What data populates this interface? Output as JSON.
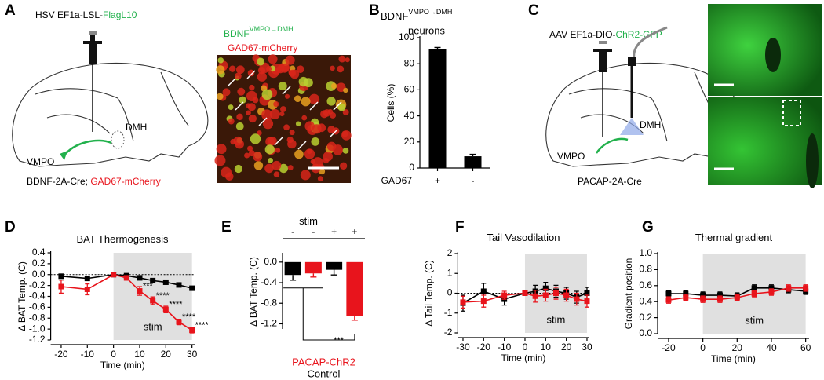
{
  "panel_letters": [
    "A",
    "B",
    "C",
    "D",
    "E",
    "F",
    "G"
  ],
  "panel_a": {
    "virus": "HSV EF1a-LSL-",
    "virus_highlight": "FlagL10",
    "target": "DMH",
    "source": "VMPO",
    "mouse": "BDNF-2A-Cre; ",
    "mouse_highlight": "GAD67-mCherry",
    "image_label": "BDNF",
    "image_label_superscript": "VMPO→DMH",
    "image_label_2": "GAD67-mCherry"
  },
  "panel_c": {
    "virus": "AAV EF1a-DIO-",
    "virus_highlight": "ChR2-GFP",
    "target": "DMH",
    "source": "VMPO",
    "mouse": "PACAP-2A-Cre"
  },
  "chart_data": [
    {
      "type": "bar",
      "title": "BDNF",
      "title_superscript": "VMPO→DMH",
      "subtitle": "neurons",
      "ylabel": "Cells (%)",
      "xlabel": "GAD67",
      "categories": [
        "+",
        "-"
      ],
      "values": [
        91,
        9
      ],
      "errors": [
        1.5,
        1.5
      ],
      "colors": [
        "#000000",
        "#000000"
      ],
      "ylim": [
        0,
        100
      ],
      "yticks": [
        0,
        20,
        40,
        60,
        80,
        100
      ]
    },
    {
      "type": "line",
      "title": "BAT Thermogenesis",
      "xlabel": "Time (min)",
      "ylabel": "Δ BAT Temp. (C)",
      "x": [
        -20,
        -10,
        0,
        5,
        10,
        15,
        20,
        25,
        30
      ],
      "series": [
        {
          "color": "#000000",
          "values": [
            -0.03,
            -0.07,
            0,
            -0.02,
            -0.06,
            -0.11,
            -0.14,
            -0.19,
            -0.25
          ],
          "errors": [
            0.03,
            0.04,
            0.02,
            0.02,
            0.03,
            0.03,
            0.03,
            0.03,
            0.03
          ]
        },
        {
          "color": "#e8141c",
          "values": [
            -0.22,
            -0.27,
            0,
            -0.06,
            -0.3,
            -0.48,
            -0.64,
            -0.87,
            -1.02
          ],
          "errors": [
            0.12,
            0.1,
            0.02,
            0.04,
            0.08,
            0.07,
            0.06,
            0.05,
            0.05
          ]
        }
      ],
      "annotations": [
        {
          "x": 10,
          "text": "***"
        },
        {
          "x": 15,
          "text": "****"
        },
        {
          "x": 20,
          "text": "****"
        },
        {
          "x": 25,
          "text": "****"
        },
        {
          "x": 30,
          "text": "****"
        }
      ],
      "shade": [
        0,
        30
      ],
      "shade_label": "stim",
      "zero_line": true,
      "xlim": [
        -24,
        31
      ],
      "xticks": [
        -20,
        -10,
        0,
        10,
        20,
        30
      ],
      "ylim": [
        -1.2,
        0.4
      ],
      "yticks": [
        0.4,
        0.2,
        {
          "value": 0,
          "label": "0.0"
        },
        -0.2,
        -0.4,
        -0.6,
        -0.8,
        {
          "value": -1,
          "label": "-1.0"
        },
        -1.2
      ]
    },
    {
      "type": "bar",
      "title": "stim",
      "ylabel": "Δ BAT Temp. (C)",
      "categories": [
        "-",
        "-",
        "+",
        "+"
      ],
      "values": [
        -0.25,
        -0.22,
        -0.15,
        -1.05
      ],
      "errors": [
        0.1,
        0.07,
        0.1,
        0.08
      ],
      "colors": [
        "#000000",
        "#e8141c",
        "#000000",
        "#e8141c"
      ],
      "legend": [
        {
          "name": "PACAP-ChR2",
          "color": "#e8141c"
        },
        {
          "name": "Control",
          "color": "#000000"
        }
      ],
      "annotations": [
        {
          "text": "***"
        }
      ],
      "ylim": [
        -1.3,
        0.15
      ],
      "yticks": [
        {
          "value": 0,
          "label": "0.0"
        },
        -0.4,
        -0.8,
        -1.2
      ]
    },
    {
      "type": "line",
      "title": "Tail Vasodilation",
      "xlabel": "Time (min)",
      "ylabel": "Δ Tail Temp. (C)",
      "x": [
        -30,
        -20,
        -10,
        0,
        5,
        10,
        15,
        20,
        25,
        30
      ],
      "series": [
        {
          "color": "#000000",
          "values": [
            -0.5,
            0.1,
            -0.3,
            0,
            0.1,
            0.25,
            0.1,
            0,
            -0.2,
            0
          ],
          "errors": [
            0.4,
            0.4,
            0.3,
            0.1,
            0.3,
            0.3,
            0.3,
            0.3,
            0.3,
            0.3
          ]
        },
        {
          "color": "#e8141c",
          "values": [
            -0.45,
            -0.4,
            -0.1,
            0,
            -0.15,
            -0.1,
            0,
            -0.1,
            -0.3,
            -0.4
          ],
          "errors": [
            0.3,
            0.3,
            0.2,
            0.1,
            0.3,
            0.3,
            0.3,
            0.3,
            0.3,
            0.3
          ]
        }
      ],
      "shade": [
        0,
        30
      ],
      "shade_label": "stim",
      "zero_line": true,
      "xlim": [
        -32.5,
        31
      ],
      "xticks": [
        -30,
        -20,
        -10,
        0,
        10,
        20,
        30
      ],
      "ylim": [
        -2,
        2
      ],
      "yticks": [
        2,
        1,
        0,
        -1,
        -2
      ]
    },
    {
      "type": "line",
      "title": "Thermal gradient",
      "xlabel": "Time (min)",
      "ylabel": "Gradient position",
      "x": [
        -20,
        -10,
        0,
        10,
        20,
        30,
        40,
        50,
        60
      ],
      "series": [
        {
          "color": "#000000",
          "values": [
            0.5,
            0.5,
            0.48,
            0.48,
            0.47,
            0.57,
            0.57,
            0.55,
            0.53
          ],
          "errors": [
            0.04,
            0.04,
            0.04,
            0.04,
            0.04,
            0.04,
            0.04,
            0.04,
            0.04
          ]
        },
        {
          "color": "#e8141c",
          "values": [
            0.42,
            0.45,
            0.43,
            0.43,
            0.45,
            0.5,
            0.52,
            0.57,
            0.57
          ],
          "errors": [
            0.04,
            0.04,
            0.04,
            0.04,
            0.04,
            0.04,
            0.04,
            0.04,
            0.04
          ]
        }
      ],
      "shade": [
        0,
        60
      ],
      "shade_label": "stim",
      "zero_line": false,
      "xlim": [
        -26.4,
        62
      ],
      "xticks": [
        -20,
        0,
        20,
        40,
        60
      ],
      "ylim": [
        0,
        1
      ],
      "yticks": [
        {
          "value": 1,
          "label": "1.0"
        },
        0.8,
        0.6,
        0.4,
        0.2,
        {
          "value": 0,
          "label": "0.0"
        }
      ]
    }
  ]
}
